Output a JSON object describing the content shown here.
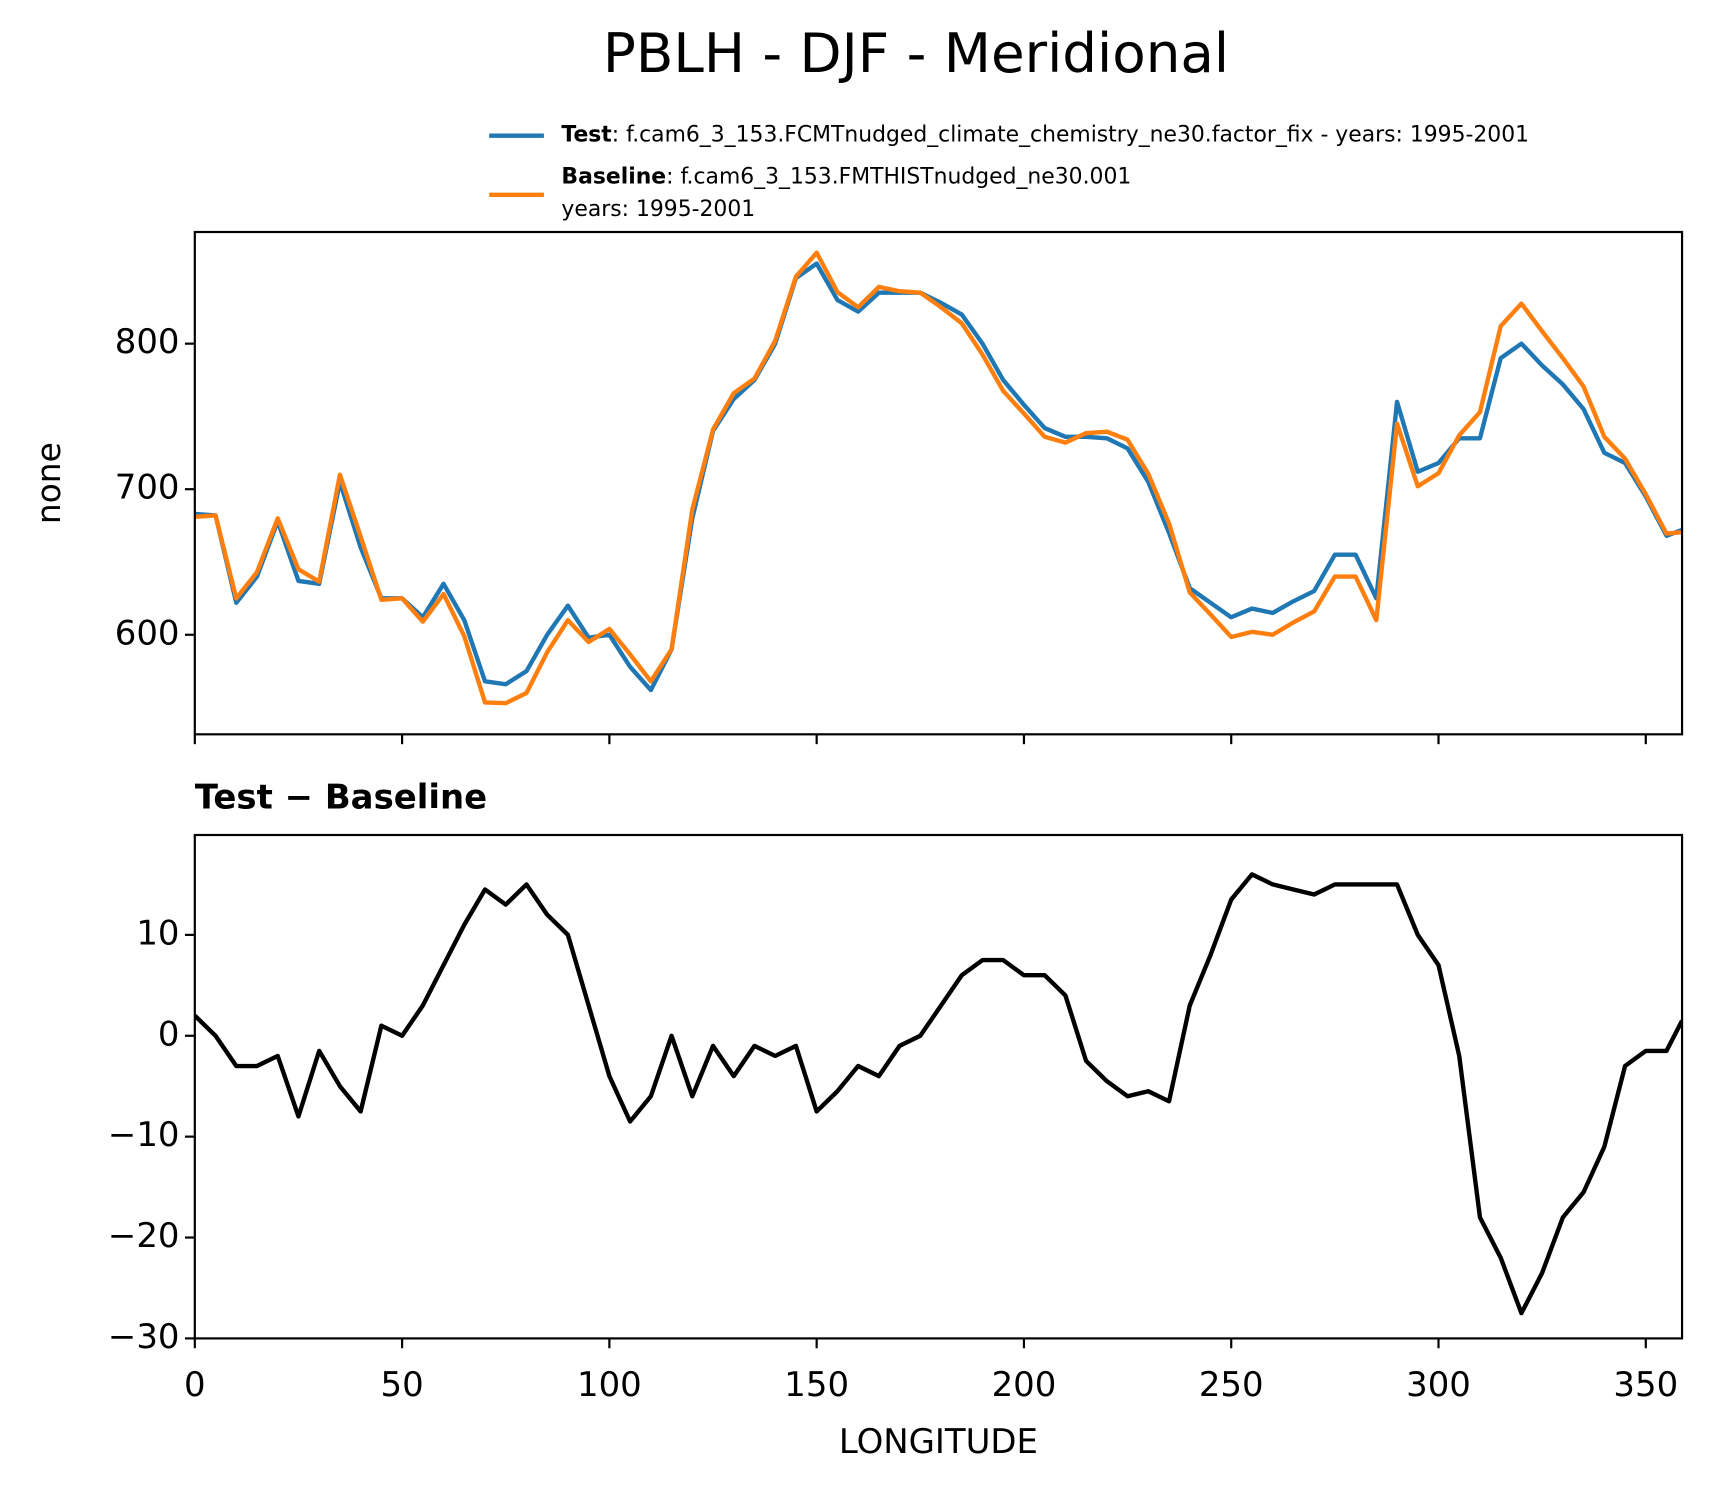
{
  "title": "PBLH - DJF - Meridional",
  "chart_data": [
    {
      "type": "line",
      "ylabel": "none",
      "x": [
        0,
        5,
        10,
        15,
        20,
        25,
        30,
        35,
        40,
        45,
        50,
        55,
        60,
        65,
        70,
        75,
        80,
        85,
        90,
        95,
        100,
        105,
        110,
        115,
        120,
        125,
        130,
        135,
        140,
        145,
        150,
        155,
        160,
        165,
        170,
        175,
        180,
        185,
        190,
        195,
        200,
        205,
        210,
        215,
        220,
        225,
        230,
        235,
        240,
        245,
        250,
        255,
        260,
        265,
        270,
        275,
        280,
        285,
        290,
        295,
        300,
        305,
        310,
        315,
        320,
        325,
        330,
        335,
        340,
        345,
        350,
        355,
        358.75
      ],
      "series": [
        {
          "name": "Test",
          "description": [
            ": f.cam6_3_153.FCMTnudged_climate_chemistry_ne30.factor_fix - years: 1995-2001"
          ],
          "color": "#1f77b4",
          "values": [
            683,
            682,
            622,
            640,
            678,
            637,
            635,
            705,
            660,
            625,
            625,
            612,
            635,
            610,
            568,
            566,
            575,
            600,
            620,
            598,
            600,
            578,
            562,
            590,
            680,
            740,
            762,
            775,
            800,
            845,
            855,
            830,
            822,
            835,
            835,
            835,
            828,
            820,
            800,
            775,
            758,
            742,
            736,
            736,
            735,
            728,
            705,
            670,
            632,
            622,
            612,
            618,
            615,
            623,
            630,
            655,
            655,
            625,
            760,
            712,
            718,
            735,
            735,
            790,
            800,
            785,
            772,
            755,
            725,
            718,
            695,
            668,
            672
          ]
        },
        {
          "name": "Baseline",
          "description": [
            ": f.cam6_3_153.FMTHISTnudged_ne30.001",
            "years: 1995-2001"
          ],
          "color": "#ff7f0e",
          "values": [
            681,
            682,
            625,
            643,
            680,
            645,
            636.5,
            710,
            667.5,
            624,
            625,
            609,
            628,
            599,
            553.5,
            553,
            560,
            588,
            610,
            595,
            604,
            586.5,
            568,
            590,
            686,
            741,
            766,
            776,
            802,
            846,
            862.5,
            835.5,
            825,
            839,
            836,
            835,
            825,
            814,
            792.5,
            767.5,
            752,
            736,
            732,
            738.5,
            739.5,
            734,
            710.5,
            676.5,
            629,
            614,
            598.5,
            602,
            600,
            608.5,
            616,
            640,
            640,
            610,
            745,
            702,
            711,
            737,
            753,
            812,
            827.5,
            808.5,
            790,
            770.5,
            736,
            721,
            696.5,
            669.5,
            670.5
          ]
        }
      ],
      "xlim": [
        0,
        358.75
      ],
      "xticks": [
        0,
        50,
        100,
        150,
        200,
        250,
        300,
        350
      ],
      "ylim": [
        531.6,
        876.7
      ],
      "yticks": [
        600,
        700,
        800
      ]
    },
    {
      "type": "line",
      "title": "Test − Baseline",
      "xlabel": "LONGITUDE",
      "x": [
        0,
        5,
        10,
        15,
        20,
        25,
        30,
        35,
        40,
        45,
        50,
        55,
        60,
        65,
        70,
        75,
        80,
        85,
        90,
        95,
        100,
        105,
        110,
        115,
        120,
        125,
        130,
        135,
        140,
        145,
        150,
        155,
        160,
        165,
        170,
        175,
        180,
        185,
        190,
        195,
        200,
        205,
        210,
        215,
        220,
        225,
        230,
        235,
        240,
        245,
        250,
        255,
        260,
        265,
        270,
        275,
        280,
        285,
        290,
        295,
        300,
        305,
        310,
        315,
        320,
        325,
        330,
        335,
        340,
        345,
        350,
        355,
        358.75
      ],
      "series": [
        {
          "color": "#000000",
          "values": [
            2,
            0,
            -3,
            -3,
            -2,
            -8,
            -1.5,
            -5,
            -7.5,
            1,
            0,
            3,
            7,
            11,
            14.5,
            13,
            15,
            12,
            10,
            3,
            -4,
            -8.5,
            -6,
            0,
            -6,
            -1,
            -4,
            -1,
            -2,
            -1,
            -7.5,
            -5.5,
            -3,
            -4,
            -1,
            0,
            3,
            6,
            7.5,
            7.5,
            6,
            6,
            4,
            -2.5,
            -4.5,
            -6,
            -5.5,
            -6.5,
            3,
            8,
            13.5,
            16,
            15,
            14.5,
            14,
            15,
            15,
            15,
            15,
            10,
            7,
            -2,
            -18,
            -22,
            -27.5,
            -23.5,
            -18,
            -15.5,
            -11,
            -3,
            -1.5,
            -1.5,
            1.5
          ]
        }
      ],
      "xlim": [
        0,
        358.75
      ],
      "xticks": [
        0,
        50,
        100,
        150,
        200,
        250,
        300,
        350
      ],
      "ylim": [
        -30,
        19.9
      ],
      "yticks": [
        10,
        0,
        {
          "value": -10,
          "label": "−10"
        },
        {
          "value": -20,
          "label": "−20"
        },
        {
          "value": -30,
          "label": "−30"
        }
      ]
    }
  ]
}
